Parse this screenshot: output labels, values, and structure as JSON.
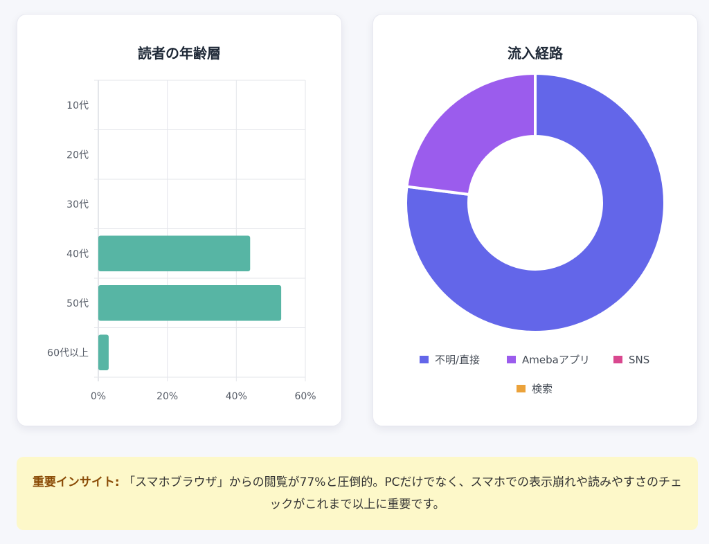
{
  "chart_data": [
    {
      "type": "bar",
      "orientation": "horizontal",
      "title": "読者の年齢層",
      "categories": [
        "10代",
        "20代",
        "30代",
        "40代",
        "50代",
        "60代以上"
      ],
      "values": [
        0,
        0,
        0,
        44,
        53,
        3
      ],
      "xlim": [
        0,
        60
      ],
      "xticks": [
        "0%",
        "20%",
        "40%",
        "60%"
      ],
      "grid": true,
      "color": "#57b5a4"
    },
    {
      "type": "pie",
      "subtype": "doughnut",
      "title": "流入経路",
      "labels": [
        "不明/直接",
        "Amebaアプリ",
        "SNS",
        "検索"
      ],
      "values": [
        77,
        23,
        0,
        0
      ],
      "colors": [
        "#6366e9",
        "#9b5ced",
        "#d9488f",
        "#eba23a"
      ],
      "legend_position": "bottom"
    }
  ],
  "insight": {
    "label": "重要インサイト:",
    "text": " 「スマホブラウザ」からの閲覧が77%と圧倒的。PCだけでなく、スマホでの表示崩れや読みやすさのチェックがこれまで以上に重要です。"
  }
}
